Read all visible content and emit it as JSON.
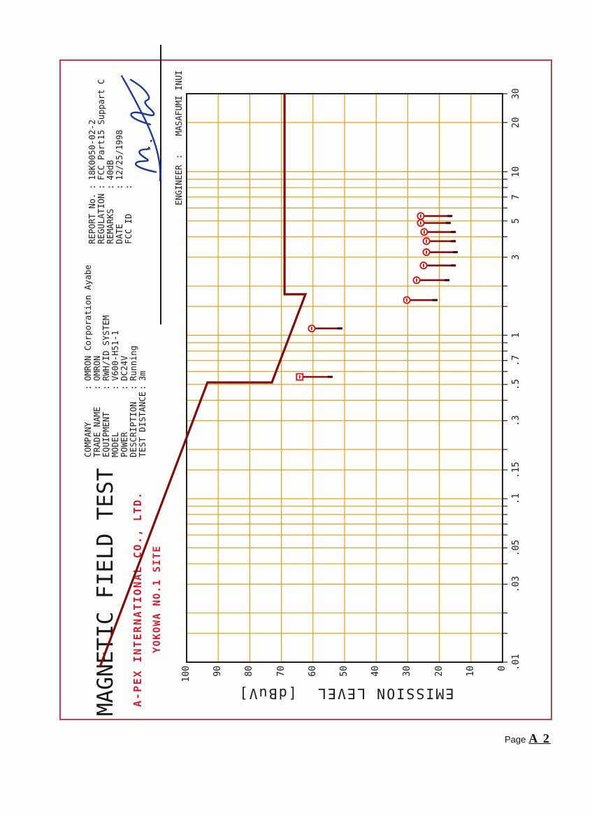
{
  "page": {
    "page_label_prefix": "Page",
    "page_label_number": "A 2"
  },
  "title_block": {
    "title": "MAGNETIC FIELD TEST",
    "site_line1": "A-PEX INTERNATIONAL CO., LTD.",
    "site_line2": "YOKOWA NO.1 SITE"
  },
  "company_info": {
    "rows": [
      {
        "label": "COMPANY",
        "value": "OMRON Corporation Ayabe"
      },
      {
        "label": "TRADE NAME",
        "value": "OMRON"
      },
      {
        "label": "EQUIPMENT",
        "value": "RWH/ID SYSTEM"
      },
      {
        "label": "MODEL",
        "value": "V600-H51-1"
      },
      {
        "label": "POWER",
        "value": "DC24V"
      },
      {
        "label": "DESCRIPTION",
        "value": "Running"
      },
      {
        "label": "TEST DISTANCE",
        "value": "3m"
      }
    ]
  },
  "report_info": {
    "rows": [
      {
        "label": "REPORT No.",
        "value": "18K0050-02-2"
      },
      {
        "label": "REGULATION",
        "value": "FCC Part15 Suppart C"
      },
      {
        "label": "REMARKS",
        "value": "40dB"
      },
      {
        "label": "DATE",
        "value": "12/25/1998"
      },
      {
        "label": "FCC ID",
        "value": ""
      }
    ],
    "engineer": {
      "label": "ENGINEER",
      "value": "MASAFUMI INUI"
    }
  },
  "colors": {
    "grid": "#e29a10",
    "frame": "#222222",
    "limit_line": "#7b1010",
    "marker": "#cc1414",
    "bar": "#8a1010",
    "bar_tip": "#350505",
    "accent_red": "#cc2236",
    "border_red": "#d83550",
    "signature_ink": "#223a8c"
  },
  "chart_data": {
    "type": "scatter",
    "title": "",
    "xlabel": "",
    "ylabel": "EMISSION LEVEL  [dBuV]",
    "x_scale": "log",
    "x_unit": "MHz",
    "xlim": [
      0.01,
      30
    ],
    "ylim": [
      0,
      100
    ],
    "grid": true,
    "xticks": [
      {
        "f": 30,
        "t": "30"
      },
      {
        "f": 20,
        "t": "20"
      },
      {
        "f": 10,
        "t": "10"
      },
      {
        "f": 7,
        "t": "7"
      },
      {
        "f": 5,
        "t": "5"
      },
      {
        "f": 3,
        "t": "3"
      },
      {
        "f": 1,
        "t": "1"
      },
      {
        "f": 0.7,
        "t": ".7"
      },
      {
        "f": 0.5,
        "t": ".5"
      },
      {
        "f": 0.3,
        "t": ".3"
      },
      {
        "f": 0.15,
        "t": ".15"
      },
      {
        "f": 0.1,
        "t": ".1"
      },
      {
        "f": 0.05,
        "t": ".05"
      },
      {
        "f": 0.03,
        "t": ".03"
      },
      {
        "f": 0.01,
        "t": ".01"
      }
    ],
    "yticks": [
      "100",
      "90",
      "80",
      "70",
      "60",
      "50",
      "40",
      "30",
      "20",
      "10",
      "0"
    ],
    "ytick_values": [
      100,
      90,
      80,
      70,
      60,
      50,
      40,
      30,
      20,
      10,
      0
    ],
    "freq_gridlines": [
      20,
      10,
      9,
      8,
      7,
      6,
      5,
      4,
      3,
      2,
      1.5,
      1,
      0.9,
      0.8,
      0.7,
      0.6,
      0.5,
      0.4,
      0.3,
      0.2,
      0.15,
      0.1,
      0.09,
      0.08,
      0.07,
      0.06,
      0.05,
      0.04,
      0.03,
      0.02,
      0.015
    ],
    "db_gridlines": [
      90,
      80,
      70,
      60,
      50,
      40,
      30,
      20,
      10
    ],
    "limit_line_fdb": [
      [
        30,
        69.0
      ],
      [
        1.78,
        69.0
      ],
      [
        1.78,
        62.4
      ],
      [
        0.514,
        73.0
      ],
      [
        0.514,
        93.4
      ],
      [
        0.0093,
        127.5
      ]
    ],
    "points": [
      {
        "f": 5.36,
        "db": 25.9,
        "db_tail": 15.9,
        "marker": "circle"
      },
      {
        "f": 4.86,
        "db": 25.9,
        "db_tail": 16.4,
        "marker": "circle"
      },
      {
        "f": 4.28,
        "db": 24.8,
        "db_tail": 14.8,
        "marker": "circle"
      },
      {
        "f": 3.76,
        "db": 24.1,
        "db_tail": 14.8,
        "marker": "circle"
      },
      {
        "f": 3.22,
        "db": 24.1,
        "db_tail": 14.2,
        "marker": "circle"
      },
      {
        "f": 2.67,
        "db": 25.0,
        "db_tail": 14.8,
        "marker": "circle"
      },
      {
        "f": 2.17,
        "db": 27.2,
        "db_tail": 16.8,
        "marker": "circle"
      },
      {
        "f": 1.64,
        "db": 30.3,
        "db_tail": 20.6,
        "marker": "circle"
      },
      {
        "f": 1.1,
        "db": 60.4,
        "db_tail": 50.7,
        "marker": "circle"
      },
      {
        "f": 0.556,
        "db": 64.2,
        "db_tail": 53.8,
        "marker": "square"
      }
    ]
  }
}
